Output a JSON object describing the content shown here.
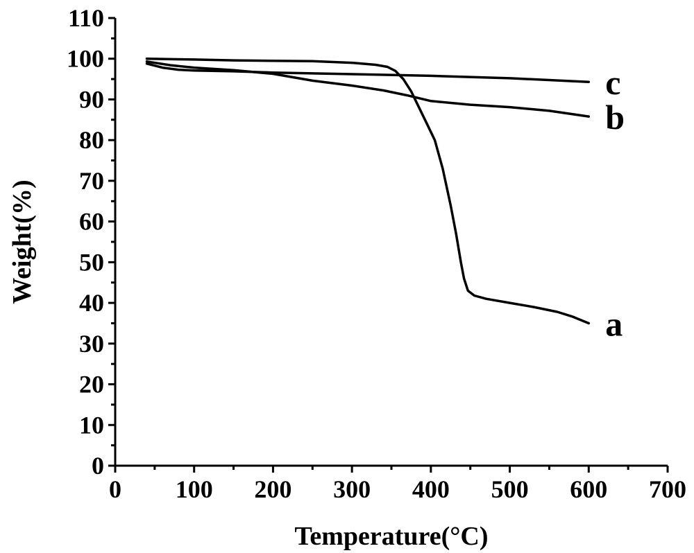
{
  "chart_data": {
    "type": "line",
    "xlabel": "Temperature(°C)",
    "ylabel": "Weight(%)",
    "xlim": [
      0,
      700
    ],
    "ylim": [
      0,
      110
    ],
    "x_ticks": [
      0,
      100,
      200,
      300,
      400,
      500,
      600,
      700
    ],
    "y_ticks": [
      0,
      10,
      20,
      30,
      40,
      50,
      60,
      70,
      80,
      90,
      100,
      110
    ],
    "grid": false,
    "legend": "none",
    "line_color": "#000000",
    "series": [
      {
        "name": "a",
        "points": [
          [
            40,
            100
          ],
          [
            100,
            99.8
          ],
          [
            150,
            99.6
          ],
          [
            200,
            99.5
          ],
          [
            250,
            99.4
          ],
          [
            300,
            99
          ],
          [
            330,
            98.5
          ],
          [
            345,
            98
          ],
          [
            355,
            97
          ],
          [
            365,
            95
          ],
          [
            375,
            92
          ],
          [
            385,
            88
          ],
          [
            395,
            84
          ],
          [
            405,
            80
          ],
          [
            415,
            73
          ],
          [
            425,
            64
          ],
          [
            432,
            57
          ],
          [
            438,
            50
          ],
          [
            442,
            46
          ],
          [
            447,
            43
          ],
          [
            455,
            41.8
          ],
          [
            470,
            41
          ],
          [
            500,
            40
          ],
          [
            530,
            39
          ],
          [
            560,
            37.8
          ],
          [
            580,
            36.6
          ],
          [
            600,
            35
          ]
        ]
      },
      {
        "name": "b",
        "points": [
          [
            40,
            99.3
          ],
          [
            70,
            98.4
          ],
          [
            100,
            97.8
          ],
          [
            150,
            97.2
          ],
          [
            200,
            96.3
          ],
          [
            250,
            94.6
          ],
          [
            300,
            93.4
          ],
          [
            340,
            92.2
          ],
          [
            370,
            91
          ],
          [
            400,
            89.6
          ],
          [
            450,
            88.7
          ],
          [
            500,
            88.1
          ],
          [
            550,
            87.2
          ],
          [
            600,
            85.8
          ]
        ]
      },
      {
        "name": "c",
        "points": [
          [
            40,
            98.8
          ],
          [
            60,
            97.8
          ],
          [
            80,
            97.3
          ],
          [
            100,
            97.1
          ],
          [
            150,
            96.9
          ],
          [
            200,
            96.6
          ],
          [
            300,
            96.2
          ],
          [
            400,
            95.8
          ],
          [
            500,
            95.2
          ],
          [
            600,
            94.3
          ]
        ]
      }
    ]
  }
}
